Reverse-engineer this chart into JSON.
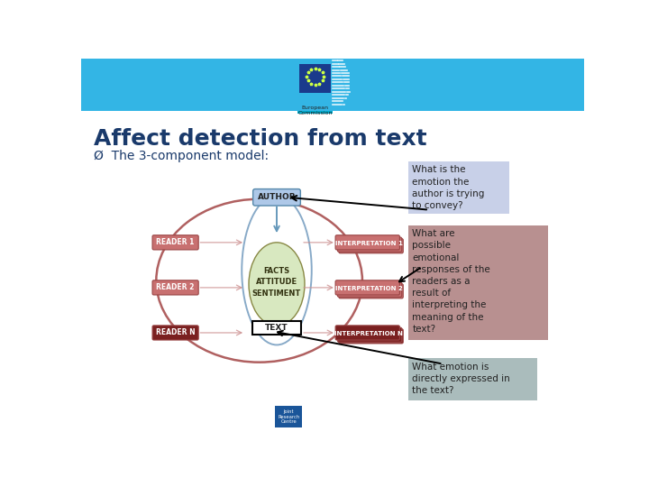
{
  "title": "Affect detection from text",
  "subtitle": "Ø  The 3-component model:",
  "bg_color": "#ffffff",
  "header_color": "#33b5e5",
  "title_color": "#1a3a6b",
  "subtitle_color": "#1a3a6b",
  "box1_color": "#c8d0e8",
  "box1_text": "What is the\nemotion the\nauthor is trying\nto convey?",
  "box2_color": "#b89090",
  "box2_text": "What are\npossible\nemotional\nresponses of the\nreaders as a\nresult of\ninterpreting the\nmeaning of the\ntext?",
  "box3_color": "#aabcbc",
  "box3_text": "What emotion is\ndirectly expressed in\nthe text?",
  "author_box_color": "#aec8e8",
  "reader_box_color": "#c87070",
  "reader_n_box_color": "#7a2020",
  "interp_box_color": "#c87070",
  "interp_n_box_color": "#7a2020",
  "center_oval_color": "#d8e8c0",
  "outer_circle_color": "#b06060",
  "inner_oval_color": "#88aac8",
  "arrow_color": "#6699bb",
  "reader_arrow_color": "#cc9090"
}
